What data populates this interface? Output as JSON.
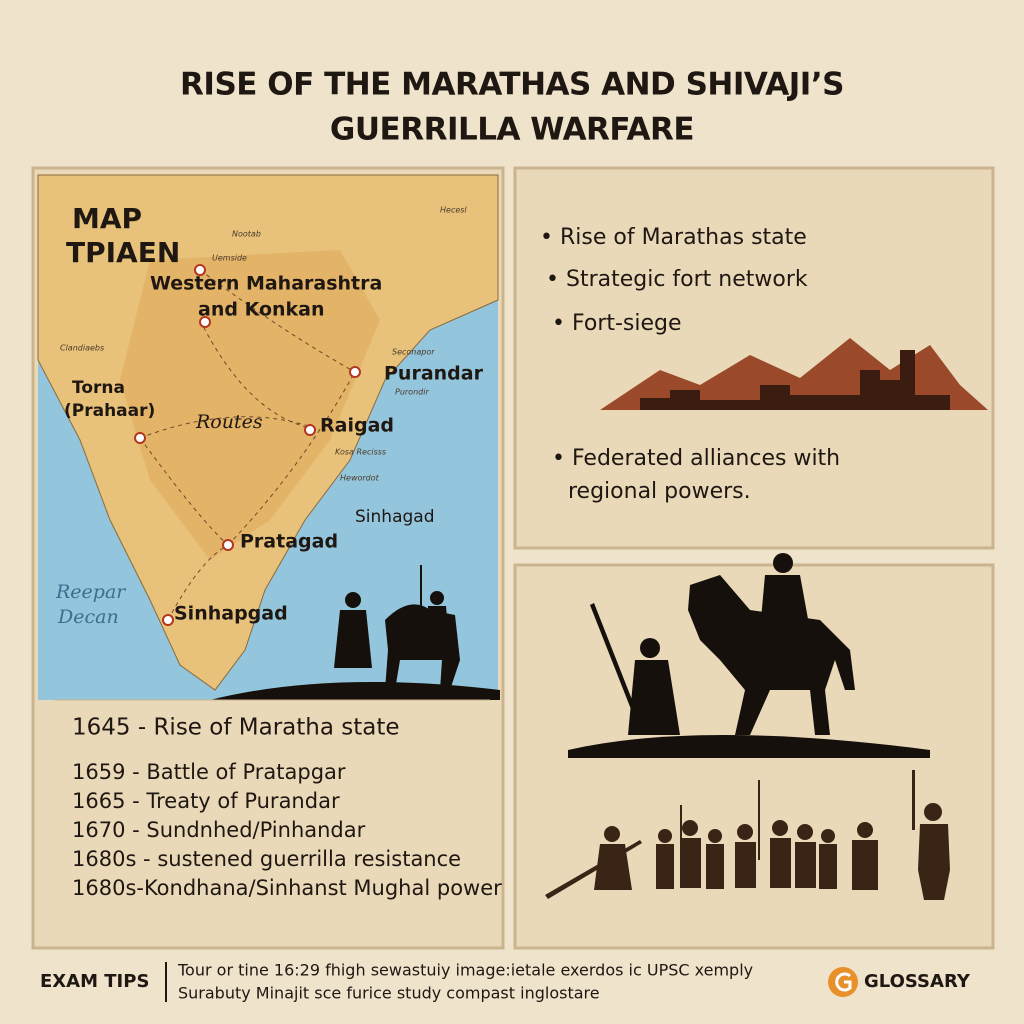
{
  "title": {
    "line1": "RISE OF THE MARATHAS AND SHIVAJI’S",
    "line2": "GUERRILLA WARFARE"
  },
  "map": {
    "heading": [
      "MAP",
      "TPIAEN"
    ],
    "region": [
      "Western Maharashtra",
      "and Konkan"
    ],
    "places": [
      "Purandar",
      "Raigad",
      "Pratagad",
      "Sinhapgad",
      "Sinhagad"
    ],
    "torna": [
      "Torna",
      "(Prahaar)"
    ],
    "routes": "Routes",
    "sea": [
      "Reepar",
      "Decan"
    ],
    "minor": [
      "Hecesl",
      "Nootab",
      "Uemside",
      "Clandiaebs",
      "Seconapor",
      "Purondir",
      "Kosa Recisss",
      "Hewordot"
    ]
  },
  "timeline": [
    "1645 - Rise of Maratha state",
    "1659 - Battle of Pratapgar",
    "1665 - Treaty of Purandar",
    "1670 - Sundnhed/Pinhandar",
    "1680s - sustened guerrilla resistance",
    "1680s-Kondhana/Sinhanst Mughal power"
  ],
  "bullets": [
    "Rise of Marathas state",
    "Strategic fort network",
    "Fort-siege",
    "Federated alliances with",
    "regional powers."
  ],
  "footer": {
    "exam_tips": "EXAM TIPS",
    "tips": [
      "Tour or tine 16:29 fhigh sewastuiy image:ietale exerdos ic UPSC xemply",
      "Surabuty Minajit sce furice study compast inglostare"
    ],
    "glossary": "GLOSSARY"
  }
}
